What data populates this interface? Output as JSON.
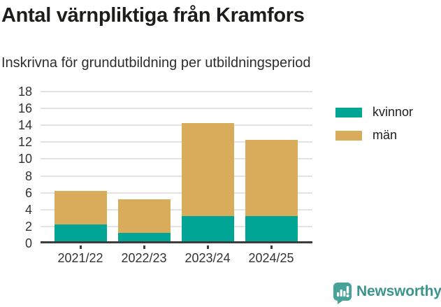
{
  "header": {
    "title": "Antal värnpliktiga från Kramfors",
    "subtitle": "Inskrivna för grundutbildning per utbildningsperiod"
  },
  "chart_data": {
    "type": "bar",
    "stacked": true,
    "title": "Antal värnpliktiga från Kramfors",
    "subtitle": "Inskrivna för grundutbildning per utbildningsperiod",
    "categories": [
      "2021/22",
      "2022/23",
      "2023/24",
      "2024/25"
    ],
    "series": [
      {
        "name": "kvinnor",
        "color": "#00a596",
        "values": [
          2,
          1,
          3,
          3
        ]
      },
      {
        "name": "män",
        "color": "#d9ac5b",
        "values": [
          4,
          4,
          11,
          9
        ]
      }
    ],
    "totals": [
      6,
      5,
      14,
      12
    ],
    "xlabel": "",
    "ylabel": "",
    "ylim": [
      0,
      18
    ],
    "yticks": [
      0,
      2,
      4,
      6,
      8,
      10,
      12,
      14,
      16,
      18
    ],
    "grid": true,
    "legend_position": "right"
  },
  "colors": {
    "kvinnor": "#00a596",
    "man": "#d9ac5b",
    "axis": "#3d3d3d",
    "gridline": "#e3e3e3",
    "brand": "#3b948d"
  },
  "footer": {
    "brand": "Newsworthy"
  }
}
